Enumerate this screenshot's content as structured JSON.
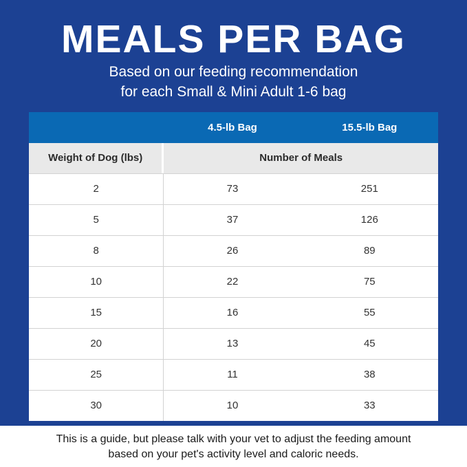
{
  "header": {
    "title": "MEALS PER BAG",
    "subtitle_line1": "Based on our feeding recommendation",
    "subtitle_line2": "for each Small & Mini Adult 1-6 bag"
  },
  "table": {
    "bag_col1": "4.5-lb Bag",
    "bag_col2": "15.5-lb Bag",
    "weight_header": "Weight of Dog (lbs)",
    "meals_header": "Number of Meals"
  },
  "footer": {
    "line1": "This is a guide, but please talk with your vet to adjust the feeding amount",
    "line2": "based on your pet's activity level and caloric needs."
  },
  "colors": {
    "background_blue": "#1c4193",
    "header_blue": "#0a69b4",
    "subheader_gray": "#e9e9e9",
    "row_divider": "#d2d2d2",
    "white": "#ffffff"
  },
  "chart_data": {
    "type": "table",
    "title": "MEALS PER BAG",
    "subtitle": "Based on our feeding recommendation for each Small & Mini Adult 1-6 bag",
    "columns": [
      "Weight of Dog (lbs)",
      "4.5-lb Bag (Number of Meals)",
      "15.5-lb Bag (Number of Meals)"
    ],
    "rows": [
      [
        "2",
        "73",
        "251"
      ],
      [
        "5",
        "37",
        "126"
      ],
      [
        "8",
        "26",
        "89"
      ],
      [
        "10",
        "22",
        "75"
      ],
      [
        "15",
        "16",
        "55"
      ],
      [
        "20",
        "13",
        "45"
      ],
      [
        "25",
        "11",
        "38"
      ],
      [
        "30",
        "10",
        "33"
      ]
    ]
  }
}
